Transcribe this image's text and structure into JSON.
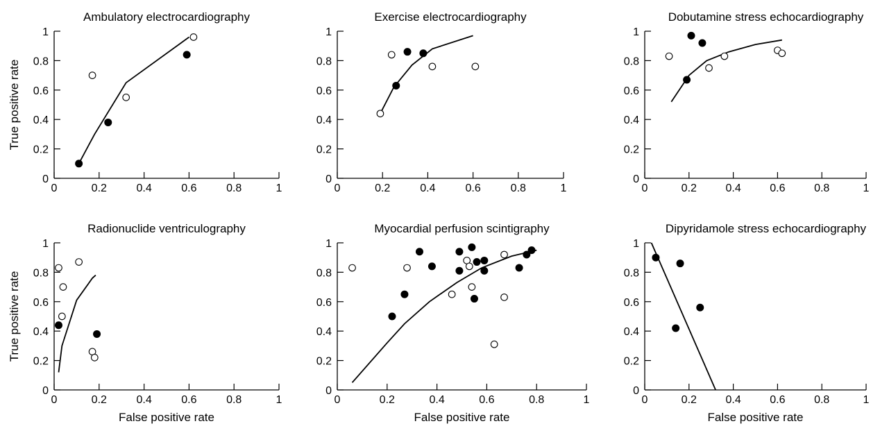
{
  "chart_data": [
    {
      "type": "scatter",
      "title": "Ambulatory electrocardiography",
      "xlabel": "",
      "ylabel": "True positive rate",
      "xlim": [
        0,
        1
      ],
      "ylim": [
        0,
        1
      ],
      "x_ticks": [
        "0",
        "0.2",
        "0.4",
        "0.6",
        "0.8",
        "1"
      ],
      "y_ticks": [
        "0",
        "0.2",
        "0.4",
        "0.6",
        "0.8",
        "1"
      ],
      "grid": false,
      "curve": [
        [
          0.11,
          0.1
        ],
        [
          0.18,
          0.3
        ],
        [
          0.32,
          0.65
        ],
        [
          0.6,
          0.96
        ]
      ],
      "open_points": [
        [
          0.17,
          0.7
        ],
        [
          0.32,
          0.55
        ],
        [
          0.62,
          0.96
        ]
      ],
      "filled_points": [
        [
          0.11,
          0.1
        ],
        [
          0.24,
          0.38
        ],
        [
          0.59,
          0.84
        ]
      ]
    },
    {
      "type": "scatter",
      "title": "Exercise electrocardiography",
      "xlabel": "",
      "ylabel": "",
      "xlim": [
        0,
        1
      ],
      "ylim": [
        0,
        1
      ],
      "x_ticks": [
        "0",
        "0.2",
        "0.4",
        "0.6",
        "0.8",
        "1"
      ],
      "y_ticks": [
        "0",
        "0.2",
        "0.4",
        "0.6",
        "0.8",
        "1"
      ],
      "grid": false,
      "curve": [
        [
          0.19,
          0.44
        ],
        [
          0.25,
          0.62
        ],
        [
          0.33,
          0.77
        ],
        [
          0.42,
          0.88
        ],
        [
          0.6,
          0.97
        ]
      ],
      "open_points": [
        [
          0.19,
          0.44
        ],
        [
          0.24,
          0.84
        ],
        [
          0.42,
          0.76
        ],
        [
          0.61,
          0.76
        ]
      ],
      "filled_points": [
        [
          0.26,
          0.63
        ],
        [
          0.31,
          0.86
        ],
        [
          0.38,
          0.85
        ]
      ]
    },
    {
      "type": "scatter",
      "title": "Dobutamine stress echocardiography",
      "xlabel": "",
      "ylabel": "",
      "xlim": [
        0,
        1
      ],
      "ylim": [
        0,
        1
      ],
      "x_ticks": [
        "0",
        "0.2",
        "0.4",
        "0.6",
        "0.8",
        "1"
      ],
      "y_ticks": [
        "0",
        "0.2",
        "0.4",
        "0.6",
        "0.8",
        "1"
      ],
      "grid": false,
      "curve": [
        [
          0.12,
          0.52
        ],
        [
          0.2,
          0.7
        ],
        [
          0.28,
          0.8
        ],
        [
          0.38,
          0.86
        ],
        [
          0.5,
          0.91
        ],
        [
          0.62,
          0.94
        ]
      ],
      "open_points": [
        [
          0.11,
          0.83
        ],
        [
          0.29,
          0.75
        ],
        [
          0.36,
          0.83
        ],
        [
          0.6,
          0.87
        ],
        [
          0.62,
          0.85
        ]
      ],
      "filled_points": [
        [
          0.21,
          0.97
        ],
        [
          0.26,
          0.92
        ],
        [
          0.19,
          0.67
        ]
      ]
    },
    {
      "type": "scatter",
      "title": "Radionuclide ventriculography",
      "xlabel": "False positive rate",
      "ylabel": "True positive rate",
      "xlim": [
        0,
        1
      ],
      "ylim": [
        0,
        1
      ],
      "x_ticks": [
        "0",
        "0.2",
        "0.4",
        "0.6",
        "0.8",
        "1"
      ],
      "y_ticks": [
        "0",
        "0.2",
        "0.4",
        "0.6",
        "0.8",
        "1"
      ],
      "grid": false,
      "curve": [
        [
          0.02,
          0.12
        ],
        [
          0.035,
          0.3
        ],
        [
          0.1,
          0.61
        ],
        [
          0.17,
          0.76
        ],
        [
          0.185,
          0.78
        ]
      ],
      "open_points": [
        [
          0.02,
          0.83
        ],
        [
          0.04,
          0.7
        ],
        [
          0.035,
          0.5
        ],
        [
          0.11,
          0.87
        ],
        [
          0.17,
          0.26
        ],
        [
          0.18,
          0.22
        ]
      ],
      "filled_points": [
        [
          0.02,
          0.44
        ],
        [
          0.19,
          0.38
        ]
      ]
    },
    {
      "type": "scatter",
      "title": "Myocardial perfusion scintigraphy",
      "xlabel": "False positive rate",
      "ylabel": "",
      "xlim": [
        0,
        1
      ],
      "ylim": [
        0,
        1
      ],
      "x_ticks": [
        "0",
        "0.2",
        "0.4",
        "0.6",
        "0.8",
        "1"
      ],
      "y_ticks": [
        "0",
        "0.2",
        "0.4",
        "0.6",
        "0.8",
        "1"
      ],
      "grid": false,
      "curve": [
        [
          0.06,
          0.05
        ],
        [
          0.2,
          0.32
        ],
        [
          0.27,
          0.45
        ],
        [
          0.37,
          0.6
        ],
        [
          0.48,
          0.73
        ],
        [
          0.58,
          0.83
        ],
        [
          0.7,
          0.91
        ],
        [
          0.8,
          0.95
        ]
      ],
      "open_points": [
        [
          0.06,
          0.83
        ],
        [
          0.28,
          0.83
        ],
        [
          0.46,
          0.65
        ],
        [
          0.52,
          0.88
        ],
        [
          0.53,
          0.84
        ],
        [
          0.54,
          0.7
        ],
        [
          0.63,
          0.31
        ],
        [
          0.67,
          0.92
        ],
        [
          0.67,
          0.63
        ]
      ],
      "filled_points": [
        [
          0.22,
          0.5
        ],
        [
          0.27,
          0.65
        ],
        [
          0.33,
          0.94
        ],
        [
          0.38,
          0.84
        ],
        [
          0.49,
          0.94
        ],
        [
          0.49,
          0.81
        ],
        [
          0.54,
          0.97
        ],
        [
          0.55,
          0.62
        ],
        [
          0.56,
          0.87
        ],
        [
          0.59,
          0.88
        ],
        [
          0.59,
          0.81
        ],
        [
          0.73,
          0.83
        ],
        [
          0.76,
          0.92
        ],
        [
          0.78,
          0.95
        ]
      ]
    },
    {
      "type": "scatter",
      "title": "Dipyridamole stress echocardiography",
      "xlabel": "False positive rate",
      "ylabel": "",
      "xlim": [
        0,
        1
      ],
      "ylim": [
        0,
        1
      ],
      "x_ticks": [
        "0",
        "0.2",
        "0.4",
        "0.6",
        "0.8",
        "1"
      ],
      "y_ticks": [
        "0",
        "0.2",
        "0.4",
        "0.6",
        "0.8",
        "1"
      ],
      "grid": false,
      "curve": [
        [
          0.03,
          1.0
        ],
        [
          0.32,
          0.0
        ]
      ],
      "open_points": [],
      "filled_points": [
        [
          0.05,
          0.9
        ],
        [
          0.16,
          0.86
        ],
        [
          0.14,
          0.42
        ],
        [
          0.25,
          0.56
        ]
      ]
    }
  ]
}
